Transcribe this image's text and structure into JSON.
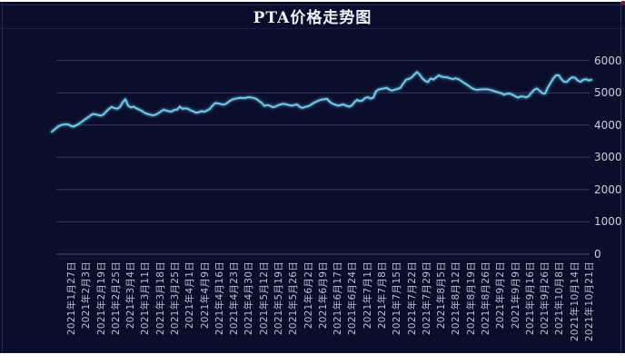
{
  "chart": {
    "title": "PTA价格走势图"
  },
  "colors": {
    "page_bg": "#ffffff",
    "panel_bg": "#0a0e2b",
    "title": "#eef1f8",
    "axis_label": "#b9c0d8",
    "y_label": "#c9cede",
    "grid": "#333a60",
    "grid_zero": "#4a5178",
    "line": "#76d0f0",
    "corner_dot": "#7a1a28"
  },
  "chart_data": {
    "type": "line",
    "title": "PTA价格走势图",
    "xlabel": "",
    "ylabel": "",
    "ylim": [
      0,
      6000
    ],
    "y_ticks": [
      0,
      1000,
      2000,
      3000,
      4000,
      5000,
      6000
    ],
    "y_axis_side": "right",
    "grid": "horizontal",
    "legend_position": "none",
    "x_tick_labels": [
      "2021年1月27日",
      "2021年2月3日",
      "2021年2月19日",
      "2021年2月25日",
      "2021年3月4日",
      "2021年3月11日",
      "2021年3月18日",
      "2021年3月25日",
      "2021年4月1日",
      "2021年4月9日",
      "2021年4月16日",
      "2021年4月23日",
      "2021年4月30日",
      "2021年5月12日",
      "2021年5月19日",
      "2021年5月26日",
      "2021年6月2日",
      "2021年6月9日",
      "2021年6月17日",
      "2021年6月24日",
      "2021年7月1日",
      "2021年7月8日",
      "2021年7月15日",
      "2021年7月22日",
      "2021年7月29日",
      "2021年8月5日",
      "2021年8月12日",
      "2021年8月19日",
      "2021年8月26日",
      "2021年9月2日",
      "2021年9月9日",
      "2021年9月16日",
      "2021年9月26日",
      "2021年10月8日",
      "2021年10月14日",
      "2021年10月21日"
    ],
    "x_tick_label_rotation": -90,
    "series": [
      {
        "name": "PTA价格",
        "color": "#76d0f0",
        "sampling": "daily prices, evenly spaced across the full date axis (start slightly before first tick, end slightly after last tick)",
        "values": [
          3790,
          3860,
          3930,
          3980,
          4010,
          4020,
          4020,
          3970,
          3950,
          3990,
          4040,
          4100,
          4160,
          4220,
          4280,
          4340,
          4330,
          4310,
          4290,
          4330,
          4420,
          4500,
          4560,
          4520,
          4505,
          4555,
          4700,
          4800,
          4600,
          4545,
          4570,
          4520,
          4480,
          4440,
          4380,
          4345,
          4325,
          4300,
          4320,
          4360,
          4420,
          4470,
          4450,
          4425,
          4420,
          4470,
          4480,
          4570,
          4500,
          4520,
          4500,
          4450,
          4420,
          4380,
          4400,
          4430,
          4410,
          4450,
          4500,
          4600,
          4680,
          4670,
          4650,
          4630,
          4660,
          4730,
          4780,
          4810,
          4825,
          4845,
          4835,
          4840,
          4860,
          4855,
          4840,
          4810,
          4750,
          4690,
          4590,
          4620,
          4600,
          4555,
          4570,
          4610,
          4640,
          4655,
          4640,
          4620,
          4600,
          4620,
          4640,
          4560,
          4530,
          4560,
          4580,
          4620,
          4680,
          4720,
          4760,
          4790,
          4800,
          4810,
          4720,
          4660,
          4630,
          4600,
          4620,
          4640,
          4600,
          4570,
          4600,
          4700,
          4780,
          4740,
          4760,
          4840,
          4860,
          4820,
          4850,
          5050,
          5100,
          5120,
          5135,
          5150,
          5090,
          5070,
          5100,
          5120,
          5160,
          5290,
          5400,
          5430,
          5470,
          5560,
          5640,
          5560,
          5440,
          5370,
          5330,
          5440,
          5410,
          5470,
          5540,
          5500,
          5480,
          5480,
          5450,
          5420,
          5450,
          5430,
          5380,
          5320,
          5270,
          5210,
          5150,
          5110,
          5090,
          5100,
          5105,
          5105,
          5105,
          5085,
          5060,
          5030,
          5010,
          4980,
          4940,
          4970,
          4975,
          4940,
          4895,
          4850,
          4880,
          4885,
          4855,
          4895,
          5000,
          5090,
          5135,
          5065,
          4985,
          4975,
          5160,
          5300,
          5440,
          5540,
          5545,
          5420,
          5340,
          5335,
          5425,
          5480,
          5465,
          5375,
          5340,
          5400,
          5420,
          5380,
          5400
        ]
      }
    ]
  }
}
